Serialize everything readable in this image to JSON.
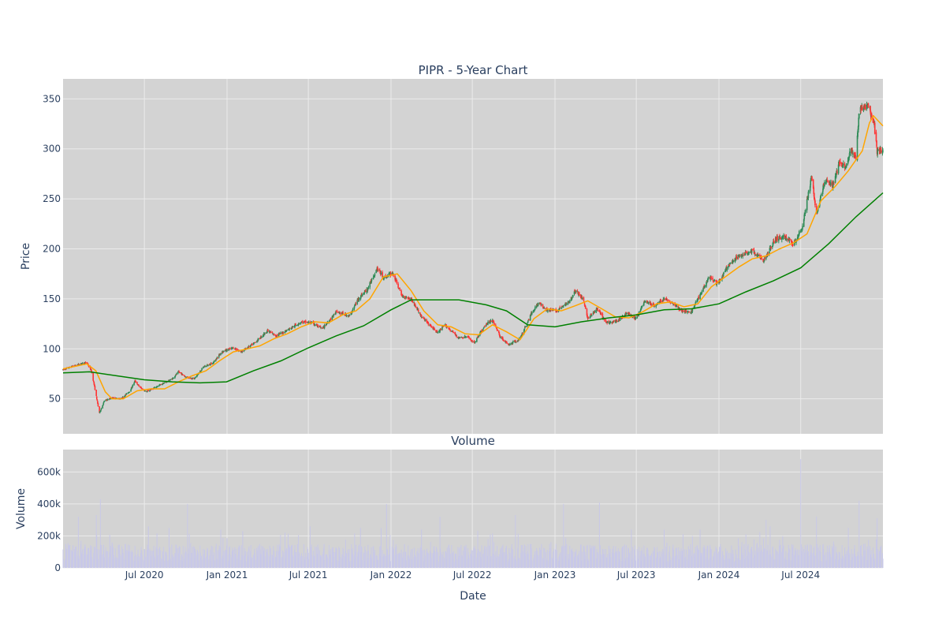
{
  "colors": {
    "plot_bg": "#d3d3d3",
    "grid": "#ebebeb",
    "candle_up": "#2e8b57",
    "candle_down": "#ff3333",
    "ma_short": "#ffa500",
    "ma_long": "#008000",
    "volume_bar": "#c8c8e8",
    "text": "#2a3f5f"
  },
  "chart_data": [
    {
      "type": "candlestick",
      "title": "PIPR - 5-Year Chart",
      "ylabel": "Price",
      "xlabel": "",
      "ylim": [
        15,
        370
      ],
      "yticks": [
        50,
        100,
        150,
        200,
        250,
        300,
        350
      ],
      "xrange": [
        "2020-01-02",
        "2024-12-31"
      ],
      "xticks": [
        {
          "date": "2020-07-01",
          "label": "Jul 2020"
        },
        {
          "date": "2021-01-01",
          "label": "Jan 2021"
        },
        {
          "date": "2021-07-01",
          "label": "Jul 2021"
        },
        {
          "date": "2022-01-01",
          "label": "Jan 2022"
        },
        {
          "date": "2022-07-01",
          "label": "Jul 2022"
        },
        {
          "date": "2023-01-01",
          "label": "Jan 2023"
        },
        {
          "date": "2023-07-01",
          "label": "Jul 2023"
        },
        {
          "date": "2024-01-01",
          "label": "Jan 2024"
        },
        {
          "date": "2024-07-01",
          "label": "Jul 2024"
        }
      ],
      "grid": true,
      "price_points": [
        [
          "2020-01-02",
          79
        ],
        [
          "2020-01-20",
          82
        ],
        [
          "2020-02-10",
          85
        ],
        [
          "2020-02-24",
          86
        ],
        [
          "2020-03-05",
          78
        ],
        [
          "2020-03-12",
          62
        ],
        [
          "2020-03-19",
          45
        ],
        [
          "2020-03-23",
          36
        ],
        [
          "2020-04-03",
          48
        ],
        [
          "2020-04-20",
          51
        ],
        [
          "2020-05-10",
          50
        ],
        [
          "2020-05-30",
          58
        ],
        [
          "2020-06-10",
          68
        ],
        [
          "2020-06-20",
          62
        ],
        [
          "2020-07-05",
          57
        ],
        [
          "2020-08-01",
          63
        ],
        [
          "2020-09-01",
          70
        ],
        [
          "2020-09-15",
          77
        ],
        [
          "2020-10-01",
          72
        ],
        [
          "2020-10-20",
          70
        ],
        [
          "2020-11-10",
          82
        ],
        [
          "2020-12-01",
          86
        ],
        [
          "2020-12-20",
          97
        ],
        [
          "2021-01-15",
          101
        ],
        [
          "2021-02-01",
          97
        ],
        [
          "2021-03-01",
          105
        ],
        [
          "2021-04-01",
          118
        ],
        [
          "2021-04-20",
          113
        ],
        [
          "2021-05-20",
          120
        ],
        [
          "2021-06-15",
          127
        ],
        [
          "2021-07-10",
          126
        ],
        [
          "2021-08-01",
          120
        ],
        [
          "2021-09-01",
          137
        ],
        [
          "2021-10-01",
          133
        ],
        [
          "2021-10-20",
          150
        ],
        [
          "2021-11-10",
          160
        ],
        [
          "2021-12-01",
          181
        ],
        [
          "2021-12-15",
          171
        ],
        [
          "2022-01-05",
          176
        ],
        [
          "2022-01-25",
          153
        ],
        [
          "2022-02-15",
          150
        ],
        [
          "2022-03-10",
          132
        ],
        [
          "2022-04-01",
          122
        ],
        [
          "2022-04-15",
          116
        ],
        [
          "2022-05-01",
          124
        ],
        [
          "2022-06-01",
          111
        ],
        [
          "2022-06-20",
          112
        ],
        [
          "2022-07-05",
          106
        ],
        [
          "2022-08-01",
          125
        ],
        [
          "2022-08-15",
          129
        ],
        [
          "2022-09-01",
          112
        ],
        [
          "2022-09-20",
          104
        ],
        [
          "2022-10-15",
          110
        ],
        [
          "2022-11-10",
          136
        ],
        [
          "2022-11-25",
          146
        ],
        [
          "2022-12-15",
          139
        ],
        [
          "2023-01-05",
          138
        ],
        [
          "2023-02-01",
          147
        ],
        [
          "2023-02-15",
          158
        ],
        [
          "2023-03-05",
          150
        ],
        [
          "2023-03-15",
          130
        ],
        [
          "2023-04-05",
          140
        ],
        [
          "2023-04-25",
          126
        ],
        [
          "2023-05-20",
          128
        ],
        [
          "2023-06-10",
          136
        ],
        [
          "2023-06-30",
          130
        ],
        [
          "2023-07-20",
          148
        ],
        [
          "2023-08-10",
          143
        ],
        [
          "2023-09-01",
          150
        ],
        [
          "2023-09-20",
          146
        ],
        [
          "2023-10-10",
          138
        ],
        [
          "2023-10-30",
          136
        ],
        [
          "2023-11-15",
          150
        ],
        [
          "2023-12-10",
          172
        ],
        [
          "2023-12-30",
          165
        ],
        [
          "2024-01-20",
          182
        ],
        [
          "2024-02-15",
          193
        ],
        [
          "2024-03-15",
          198
        ],
        [
          "2024-04-10",
          188
        ],
        [
          "2024-05-05",
          210
        ],
        [
          "2024-05-25",
          212
        ],
        [
          "2024-06-15",
          205
        ],
        [
          "2024-07-05",
          222
        ],
        [
          "2024-07-15",
          248
        ],
        [
          "2024-07-25",
          272
        ],
        [
          "2024-08-05",
          235
        ],
        [
          "2024-08-25",
          270
        ],
        [
          "2024-09-10",
          262
        ],
        [
          "2024-09-25",
          286
        ],
        [
          "2024-10-10",
          283
        ],
        [
          "2024-10-20",
          300
        ],
        [
          "2024-11-01",
          290
        ],
        [
          "2024-11-08",
          338
        ],
        [
          "2024-11-20",
          343
        ],
        [
          "2024-12-01",
          340
        ],
        [
          "2024-12-12",
          322
        ],
        [
          "2024-12-18",
          297
        ],
        [
          "2024-12-31",
          298
        ]
      ],
      "series": [
        {
          "type": "line",
          "points": [
            [
              "2020-01-02",
              80
            ],
            [
              "2020-02-24",
              85
            ],
            [
              "2020-03-15",
              78
            ],
            [
              "2020-04-05",
              57
            ],
            [
              "2020-04-20",
              50
            ],
            [
              "2020-05-15",
              50
            ],
            [
              "2020-06-15",
              58
            ],
            [
              "2020-07-15",
              60
            ],
            [
              "2020-08-15",
              60
            ],
            [
              "2020-09-15",
              67
            ],
            [
              "2020-10-15",
              73
            ],
            [
              "2020-11-15",
              78
            ],
            [
              "2020-12-15",
              88
            ],
            [
              "2021-01-15",
              97
            ],
            [
              "2021-02-15",
              100
            ],
            [
              "2021-03-15",
              103
            ],
            [
              "2021-04-15",
              110
            ],
            [
              "2021-05-15",
              115
            ],
            [
              "2021-06-15",
              122
            ],
            [
              "2021-07-15",
              127
            ],
            [
              "2021-08-15",
              126
            ],
            [
              "2021-09-15",
              134
            ],
            [
              "2021-10-15",
              138
            ],
            [
              "2021-11-15",
              150
            ],
            [
              "2021-12-15",
              172
            ],
            [
              "2022-01-15",
              175
            ],
            [
              "2022-02-15",
              158
            ],
            [
              "2022-03-15",
              138
            ],
            [
              "2022-04-15",
              124
            ],
            [
              "2022-05-15",
              122
            ],
            [
              "2022-06-15",
              115
            ],
            [
              "2022-07-15",
              114
            ],
            [
              "2022-08-15",
              124
            ],
            [
              "2022-09-15",
              117
            ],
            [
              "2022-10-15",
              109
            ],
            [
              "2022-11-15",
              130
            ],
            [
              "2022-12-15",
              140
            ],
            [
              "2023-01-15",
              138
            ],
            [
              "2023-02-15",
              143
            ],
            [
              "2023-03-15",
              148
            ],
            [
              "2023-04-15",
              140
            ],
            [
              "2023-05-15",
              132
            ],
            [
              "2023-06-15",
              131
            ],
            [
              "2023-07-15",
              137
            ],
            [
              "2023-08-15",
              145
            ],
            [
              "2023-09-15",
              147
            ],
            [
              "2023-10-15",
              142
            ],
            [
              "2023-11-15",
              145
            ],
            [
              "2023-12-15",
              162
            ],
            [
              "2024-01-15",
              172
            ],
            [
              "2024-02-15",
              182
            ],
            [
              "2024-03-15",
              190
            ],
            [
              "2024-04-15",
              193
            ],
            [
              "2024-05-15",
              200
            ],
            [
              "2024-06-15",
              206
            ],
            [
              "2024-07-15",
              215
            ],
            [
              "2024-08-15",
              248
            ],
            [
              "2024-09-15",
              262
            ],
            [
              "2024-10-15",
              278
            ],
            [
              "2024-11-15",
              298
            ],
            [
              "2024-12-01",
              326
            ],
            [
              "2024-12-10",
              333
            ],
            [
              "2024-12-31",
              323
            ]
          ]
        },
        {
          "type": "line",
          "points": [
            [
              "2020-01-02",
              76
            ],
            [
              "2020-03-01",
              77
            ],
            [
              "2020-05-01",
              73
            ],
            [
              "2020-07-01",
              69
            ],
            [
              "2020-09-01",
              67
            ],
            [
              "2020-11-01",
              66
            ],
            [
              "2020-12-31",
              67
            ],
            [
              "2021-03-01",
              78
            ],
            [
              "2021-05-01",
              88
            ],
            [
              "2021-07-01",
              101
            ],
            [
              "2021-09-01",
              113
            ],
            [
              "2021-11-01",
              123
            ],
            [
              "2022-01-01",
              139
            ],
            [
              "2022-02-15",
              149
            ],
            [
              "2022-04-01",
              149
            ],
            [
              "2022-06-01",
              149
            ],
            [
              "2022-08-01",
              144
            ],
            [
              "2022-09-15",
              138
            ],
            [
              "2022-11-01",
              124
            ],
            [
              "2023-01-01",
              122
            ],
            [
              "2023-03-01",
              127
            ],
            [
              "2023-05-01",
              131
            ],
            [
              "2023-07-01",
              134
            ],
            [
              "2023-09-01",
              139
            ],
            [
              "2023-11-01",
              140
            ],
            [
              "2024-01-01",
              145
            ],
            [
              "2024-03-01",
              157
            ],
            [
              "2024-05-01",
              168
            ],
            [
              "2024-07-01",
              181
            ],
            [
              "2024-09-01",
              205
            ],
            [
              "2024-11-01",
              232
            ],
            [
              "2024-12-31",
              256
            ]
          ]
        }
      ]
    },
    {
      "type": "bar",
      "title": "Volume",
      "ylabel": "Volume",
      "xlabel": "Date",
      "ylim": [
        0,
        740000
      ],
      "yticks": [
        {
          "value": 0,
          "label": "0"
        },
        {
          "value": 200000,
          "label": "200k"
        },
        {
          "value": 400000,
          "label": "400k"
        },
        {
          "value": 600000,
          "label": "600k"
        }
      ],
      "grid": true,
      "spikes": [
        [
          "2020-01-15",
          140000
        ],
        [
          "2020-02-05",
          320000
        ],
        [
          "2020-03-16",
          330000
        ],
        [
          "2020-03-25",
          430000
        ],
        [
          "2020-04-20",
          160000
        ],
        [
          "2020-06-20",
          720000
        ],
        [
          "2020-07-10",
          260000
        ],
        [
          "2020-08-25",
          250000
        ],
        [
          "2020-10-05",
          400000
        ],
        [
          "2020-12-18",
          240000
        ],
        [
          "2021-02-05",
          230000
        ],
        [
          "2021-05-10",
          220000
        ],
        [
          "2021-07-05",
          260000
        ],
        [
          "2021-10-25",
          250000
        ],
        [
          "2021-12-10",
          250000
        ],
        [
          "2021-12-22",
          400000
        ],
        [
          "2022-03-10",
          240000
        ],
        [
          "2022-04-20",
          320000
        ],
        [
          "2022-06-05",
          250000
        ],
        [
          "2022-08-10",
          210000
        ],
        [
          "2022-10-05",
          330000
        ],
        [
          "2022-12-20",
          150000
        ],
        [
          "2023-01-20",
          400000
        ],
        [
          "2023-04-10",
          410000
        ],
        [
          "2023-06-20",
          240000
        ],
        [
          "2023-07-01",
          660000
        ],
        [
          "2023-09-01",
          240000
        ],
        [
          "2023-11-20",
          240000
        ],
        [
          "2023-12-10",
          450000
        ],
        [
          "2024-01-20",
          230000
        ],
        [
          "2024-03-01",
          210000
        ],
        [
          "2024-04-15",
          300000
        ],
        [
          "2024-07-01",
          680000
        ],
        [
          "2024-07-20",
          330000
        ],
        [
          "2024-08-05",
          320000
        ],
        [
          "2024-10-15",
          250000
        ],
        [
          "2024-11-08",
          420000
        ],
        [
          "2024-12-18",
          310000
        ]
      ]
    }
  ]
}
